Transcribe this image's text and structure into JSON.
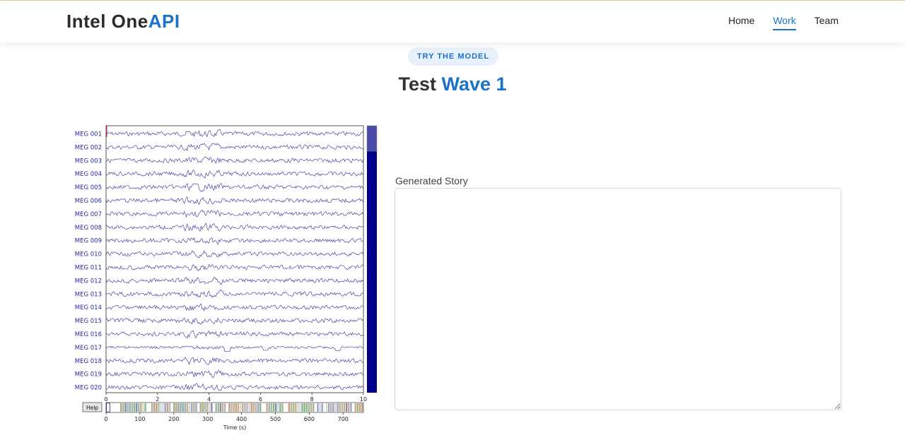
{
  "header": {
    "brand_main": "Intel One",
    "brand_accent": "API",
    "nav": [
      "Home",
      "Work",
      "Team"
    ],
    "active_nav": "Work"
  },
  "hero": {
    "badge": "TRY THE MODEL",
    "title_main": "Test ",
    "title_accent": "Wave 1"
  },
  "chart_data": {
    "type": "line",
    "channels": [
      "MEG 001",
      "MEG 002",
      "MEG 003",
      "MEG 004",
      "MEG 005",
      "MEG 006",
      "MEG 007",
      "MEG 008",
      "MEG 009",
      "MEG 010",
      "MEG 011",
      "MEG 012",
      "MEG 013",
      "MEG 014",
      "MEG 015",
      "MEG 016",
      "MEG 017",
      "MEG 018",
      "MEG 019",
      "MEG 020"
    ],
    "xticks": [
      "0",
      "2",
      "4",
      "6",
      "8",
      "10"
    ],
    "xlim": [
      0,
      10
    ],
    "overview_xticks": [
      "0",
      "100",
      "200",
      "300",
      "400",
      "500",
      "600",
      "700"
    ],
    "overview_xlabel": "Time (s)",
    "overview_xlim": [
      0,
      760
    ],
    "help_label": "Help",
    "colors": {
      "trace": "#2a2a9a",
      "scrollbar": "#00008b",
      "scroll_thumb": "#4a4aa8",
      "marker": "#e0246e"
    }
  },
  "story": {
    "label": "Generated Story",
    "value": ""
  }
}
